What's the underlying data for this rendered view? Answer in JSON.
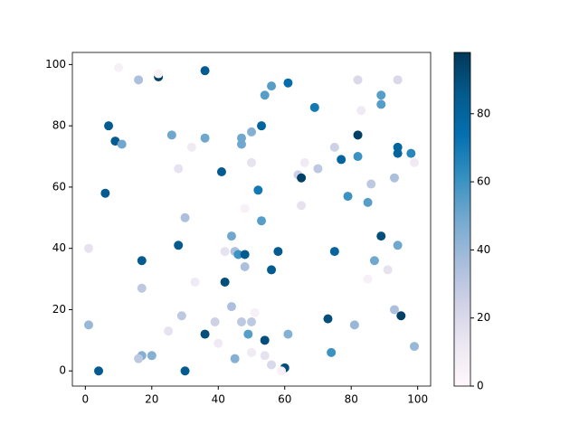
{
  "chart_data": {
    "type": "scatter",
    "colormap": "PuBu",
    "x": [
      4,
      7,
      9,
      11,
      6,
      1,
      1,
      10,
      16,
      22,
      36,
      26,
      28,
      32,
      30,
      28,
      17,
      17,
      29,
      25,
      17,
      16,
      20,
      30,
      33,
      36,
      41,
      42,
      42,
      44,
      44,
      39,
      40,
      36,
      45,
      45,
      46,
      48,
      48,
      47,
      50,
      49,
      50,
      51,
      54,
      54,
      56,
      60,
      61,
      59,
      56,
      58,
      53,
      52,
      48,
      50,
      47,
      47,
      50,
      53,
      54,
      56,
      61,
      69,
      70,
      64,
      65,
      66,
      65,
      75,
      77,
      79,
      82,
      82,
      82,
      83,
      86,
      85,
      75,
      87,
      85,
      89,
      89,
      89,
      94,
      94,
      94,
      98,
      99,
      93,
      94,
      91,
      93,
      95,
      81,
      73,
      74,
      99,
      22
    ],
    "values": [
      0,
      80,
      75,
      74,
      58,
      40,
      15,
      99,
      95,
      96,
      98,
      77,
      66,
      73,
      50,
      41,
      36,
      27,
      18,
      13,
      5,
      4,
      5,
      0,
      29,
      76,
      65,
      39,
      29,
      44,
      21,
      16,
      9,
      12,
      4,
      39,
      38,
      38,
      34,
      16,
      16,
      12,
      6,
      19,
      10,
      5,
      2,
      1,
      12,
      0,
      33,
      39,
      49,
      59,
      53,
      68,
      74,
      76,
      78,
      80,
      90,
      93,
      94,
      86,
      66,
      64,
      63,
      68,
      54,
      73,
      69,
      57,
      77,
      70,
      95,
      85,
      61,
      55,
      39,
      36,
      30,
      44,
      90,
      87,
      95,
      73,
      71,
      71,
      68,
      63,
      41,
      33,
      20,
      18,
      15,
      17,
      6,
      8,
      97
    ],
    "color_values": [
      85,
      85,
      85,
      50,
      85,
      15,
      40,
      5,
      35,
      95,
      85,
      50,
      15,
      10,
      35,
      85,
      85,
      30,
      30,
      15,
      45,
      30,
      45,
      85,
      10,
      50,
      85,
      15,
      90,
      50,
      35,
      25,
      10,
      90,
      45,
      35,
      60,
      85,
      35,
      30,
      30,
      55,
      10,
      5,
      90,
      15,
      20,
      90,
      45,
      5,
      85,
      85,
      55,
      70,
      5,
      15,
      50,
      50,
      45,
      80,
      55,
      55,
      75,
      70,
      30,
      25,
      95,
      10,
      15,
      25,
      80,
      60,
      95,
      60,
      20,
      10,
      30,
      55,
      80,
      50,
      5,
      90,
      55,
      55,
      20,
      80,
      80,
      65,
      10,
      35,
      50,
      15,
      35,
      95,
      40,
      90,
      60,
      40,
      5
    ],
    "xlim": [
      -3.9,
      103.9
    ],
    "ylim": [
      -4.95,
      103.95
    ],
    "clim": [
      0,
      98
    ],
    "xticks": [
      0,
      20,
      40,
      60,
      80,
      100
    ],
    "yticks": [
      0,
      20,
      40,
      60,
      80,
      100
    ],
    "cticks": [
      0,
      20,
      40,
      60,
      80
    ]
  }
}
